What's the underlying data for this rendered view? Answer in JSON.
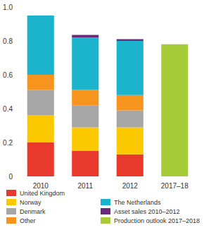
{
  "chart_data": {
    "type": "bar",
    "stacked": true,
    "grid": false,
    "legend": "bottom",
    "categories": [
      "2010",
      "2011",
      "2012",
      "2017–18"
    ],
    "ylim": [
      0,
      1
    ],
    "yticks": [
      0,
      0.2,
      0.4,
      0.6,
      0.8,
      {
        "value": 1,
        "label": "1.0"
      }
    ],
    "series": [
      {
        "name": "United Kingdom",
        "color": "#e8392c",
        "values": [
          0.2,
          0.15,
          0.13,
          null
        ]
      },
      {
        "name": "Norway",
        "color": "#fcc800",
        "values": [
          0.16,
          0.14,
          0.16,
          null
        ]
      },
      {
        "name": "Denmark",
        "color": "#a6a6a6",
        "values": [
          0.15,
          0.13,
          0.1,
          null
        ]
      },
      {
        "name": "Other",
        "color": "#f7941d",
        "values": [
          0.09,
          0.09,
          0.09,
          null
        ]
      },
      {
        "name": "The Netherlands",
        "color": "#1cb3cc",
        "values": [
          0.35,
          0.31,
          0.32,
          null
        ]
      },
      {
        "name": "Asset sales 2010–2012",
        "color": "#6c2a7a",
        "values": [
          0,
          0.015,
          0.01,
          null
        ]
      },
      {
        "name": "Production outlook 2017–2018",
        "color": "#a6cc38",
        "values": [
          null,
          null,
          null,
          0.78
        ]
      }
    ]
  }
}
